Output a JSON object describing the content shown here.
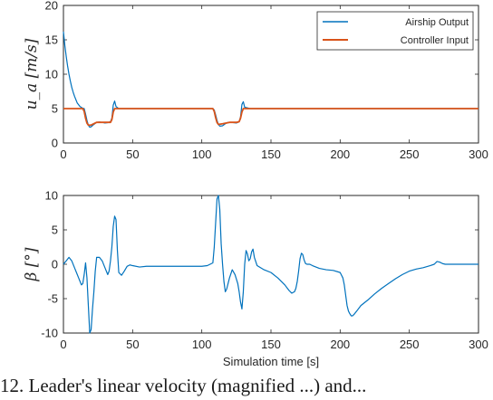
{
  "chart_data": [
    {
      "type": "line",
      "title": "",
      "xlabel": "",
      "ylabel": "u_a [m/s]",
      "xlim": [
        0,
        300
      ],
      "ylim": [
        0,
        20
      ],
      "xticks": [
        "0",
        "50",
        "100",
        "150",
        "200",
        "250",
        "300"
      ],
      "yticks": [
        "0",
        "5",
        "10",
        "15",
        "20"
      ],
      "grid": false,
      "legend": "top-right",
      "series": [
        {
          "name": "Airship Output",
          "color": "#0072BD",
          "x": [
            0,
            1,
            2,
            3,
            4,
            5,
            6,
            7,
            8,
            9,
            10,
            12,
            14,
            15,
            16,
            17,
            18,
            19,
            20,
            22,
            24,
            26,
            28,
            30,
            32,
            34,
            35,
            36,
            37,
            38,
            40,
            50,
            100,
            105,
            108,
            109,
            110,
            111,
            112,
            113,
            115,
            117,
            119,
            121,
            123,
            125,
            127,
            128,
            129,
            130,
            131,
            135,
            150,
            200,
            250,
            300
          ],
          "y": [
            16.2,
            14.2,
            12.6,
            11.2,
            10.0,
            9.0,
            8.1,
            7.4,
            6.8,
            6.3,
            5.8,
            5.3,
            5.05,
            5.0,
            4.2,
            3.3,
            2.6,
            2.3,
            2.35,
            2.7,
            3.0,
            3.05,
            3.0,
            2.9,
            2.95,
            3.1,
            3.6,
            5.5,
            6.1,
            5.3,
            5.0,
            5.0,
            5.0,
            5.0,
            5.0,
            4.8,
            4.1,
            3.3,
            2.7,
            2.45,
            2.5,
            2.8,
            3.0,
            3.0,
            2.95,
            2.9,
            3.1,
            3.8,
            5.6,
            6.0,
            5.2,
            5.0,
            5.0,
            5.0,
            5.0,
            5.0
          ]
        },
        {
          "name": "Controller Input",
          "color": "#D95319",
          "x": [
            0,
            14,
            15,
            16,
            17,
            18,
            20,
            24,
            30,
            34,
            35,
            36,
            37,
            38,
            100,
            108,
            109,
            110,
            111,
            112,
            115,
            120,
            125,
            127,
            128,
            129,
            130,
            300
          ],
          "y": [
            5.0,
            5.0,
            4.6,
            3.6,
            2.9,
            2.6,
            2.6,
            3.0,
            3.0,
            3.0,
            3.4,
            4.5,
            5.0,
            5.0,
            5.0,
            5.0,
            4.6,
            3.7,
            3.0,
            2.7,
            2.8,
            3.0,
            3.0,
            3.1,
            3.6,
            4.5,
            5.0,
            5.0
          ]
        }
      ]
    },
    {
      "type": "line",
      "title": "",
      "xlabel": "Simulation time [s]",
      "ylabel": "β [°]",
      "xlim": [
        0,
        300
      ],
      "ylim": [
        -10,
        10
      ],
      "xticks": [
        "0",
        "50",
        "100",
        "150",
        "200",
        "250",
        "300"
      ],
      "yticks": [
        "-10",
        "-5",
        "0",
        "5",
        "10"
      ],
      "grid": false,
      "legend": "none",
      "series": [
        {
          "color": "#0072BD",
          "x": [
            0,
            2,
            4,
            6,
            8,
            10,
            11,
            12,
            13,
            14,
            15,
            16,
            17,
            18,
            19,
            20,
            21,
            22,
            23,
            24,
            26,
            28,
            30,
            32,
            33,
            34,
            35,
            36,
            37,
            38,
            39,
            40,
            42,
            44,
            46,
            48,
            50,
            55,
            60,
            80,
            100,
            104,
            106,
            108,
            109,
            110,
            111,
            112,
            113,
            114,
            115,
            116,
            117,
            118,
            120,
            122,
            124,
            126,
            127,
            128,
            129,
            130,
            131,
            132,
            133,
            134,
            135,
            136,
            137,
            138,
            140,
            145,
            150,
            155,
            160,
            163,
            165,
            167,
            168,
            169,
            170,
            171,
            172,
            173,
            174,
            175,
            176,
            178,
            180,
            185,
            190,
            195,
            200,
            202,
            203,
            204,
            205,
            206,
            207,
            208,
            209,
            210,
            212,
            215,
            220,
            225,
            230,
            235,
            240,
            245,
            250,
            255,
            260,
            265,
            268,
            270,
            272,
            274,
            276,
            280,
            290,
            300
          ],
          "y": [
            0.0,
            0.5,
            1.0,
            0.5,
            -0.5,
            -1.5,
            -2.0,
            -2.5,
            -3.0,
            -2.8,
            -1.5,
            0.2,
            -2.0,
            -6.0,
            -10.0,
            -9.5,
            -6.5,
            -4.0,
            -1.0,
            1.0,
            1.0,
            0.5,
            -0.5,
            -1.5,
            -1.0,
            0.5,
            2.5,
            5.5,
            7.0,
            6.5,
            2.0,
            -1.2,
            -1.6,
            -1.0,
            -0.3,
            -0.1,
            -0.2,
            -0.4,
            -0.3,
            -0.3,
            -0.3,
            -0.2,
            0.0,
            0.2,
            2.5,
            6.0,
            9.5,
            10.0,
            8.0,
            3.0,
            0.0,
            -2.5,
            -4.0,
            -3.6,
            -2.0,
            -0.8,
            -1.5,
            -2.8,
            -4.0,
            -5.5,
            -6.5,
            -4.0,
            0.0,
            2.0,
            1.5,
            0.5,
            0.8,
            1.8,
            2.2,
            1.0,
            -0.2,
            -0.8,
            -1.2,
            -2.0,
            -3.0,
            -3.8,
            -4.2,
            -4.0,
            -3.5,
            -2.5,
            -1.0,
            0.8,
            1.6,
            1.4,
            0.6,
            0.1,
            0.0,
            0.0,
            -0.2,
            -0.6,
            -0.8,
            -0.9,
            -1.2,
            -2.0,
            -3.0,
            -4.5,
            -6.0,
            -6.8,
            -7.2,
            -7.5,
            -7.5,
            -7.3,
            -6.8,
            -6.0,
            -5.2,
            -4.3,
            -3.5,
            -2.8,
            -2.1,
            -1.5,
            -1.0,
            -0.7,
            -0.5,
            -0.2,
            0.0,
            0.4,
            0.3,
            0.1,
            0.0,
            0.0,
            0.0,
            0.0
          ]
        }
      ]
    }
  ],
  "caption": "12. Leader's linear velocity (magnified ...) and..."
}
